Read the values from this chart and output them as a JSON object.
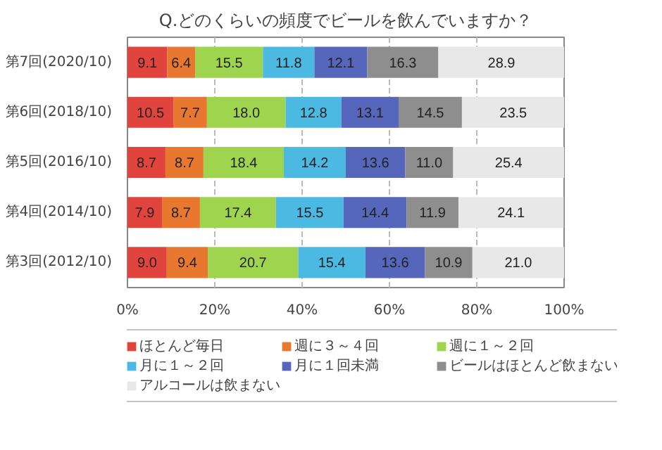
{
  "chart_data": {
    "type": "bar",
    "orientation": "horizontal",
    "stacked": true,
    "title": "Q.どのくらいの頻度でビールを飲んでいますか？",
    "categories": [
      "第7回(2020/10)",
      "第6回(2018/10)",
      "第5回(2016/10)",
      "第4回(2014/10)",
      "第3回(2012/10)"
    ],
    "series": [
      {
        "name": "ほとんど毎日",
        "color": "#e0443c",
        "values": [
          9.1,
          10.5,
          8.7,
          7.9,
          9.0
        ],
        "value_labels": [
          "9.1",
          "10.5",
          "8.7",
          "7.9",
          "9.0"
        ]
      },
      {
        "name": "週に３～４回",
        "color": "#e8772f",
        "values": [
          6.4,
          7.7,
          8.7,
          8.7,
          9.4
        ],
        "value_labels": [
          "6.4",
          "7.7",
          "8.7",
          "8.7",
          "9.4"
        ]
      },
      {
        "name": "週に１～２回",
        "color": "#9fd44e",
        "values": [
          15.5,
          18.0,
          18.4,
          17.4,
          20.7
        ],
        "value_labels": [
          "15.5",
          "18.0",
          "18.4",
          "17.4",
          "20.7"
        ]
      },
      {
        "name": "月に１～２回",
        "color": "#4cb9e2",
        "values": [
          11.8,
          12.8,
          14.2,
          15.5,
          15.4
        ],
        "value_labels": [
          "11.8",
          "12.8",
          "14.2",
          "15.5",
          "15.4"
        ]
      },
      {
        "name": "月に１回未満",
        "color": "#5566bb",
        "values": [
          12.1,
          13.1,
          13.6,
          14.4,
          13.6
        ],
        "value_labels": [
          "12.1",
          "13.1",
          "13.6",
          "14.4",
          "13.6"
        ]
      },
      {
        "name": "ビールはほとんど飲まない",
        "color": "#8e8e8e",
        "values": [
          16.3,
          14.5,
          11.0,
          11.9,
          10.9
        ],
        "value_labels": [
          "16.3",
          "14.5",
          "11.0",
          "11.9",
          "10.9"
        ]
      },
      {
        "name": "アルコールは飲まない",
        "color": "#e8e8e8",
        "values": [
          28.9,
          23.5,
          25.4,
          24.1,
          21.0
        ],
        "value_labels": [
          "28.9",
          "23.5",
          "25.4",
          "24.1",
          "21.0"
        ]
      }
    ],
    "xlim": [
      0,
      100
    ],
    "xticks": [
      {
        "value": 0,
        "label": "0%"
      },
      {
        "value": 20,
        "label": "20%"
      },
      {
        "value": 40,
        "label": "40%"
      },
      {
        "value": 60,
        "label": "60%"
      },
      {
        "value": 80,
        "label": "80%"
      },
      {
        "value": 100,
        "label": "100%"
      }
    ],
    "grid": "x",
    "legend": "bottom"
  }
}
